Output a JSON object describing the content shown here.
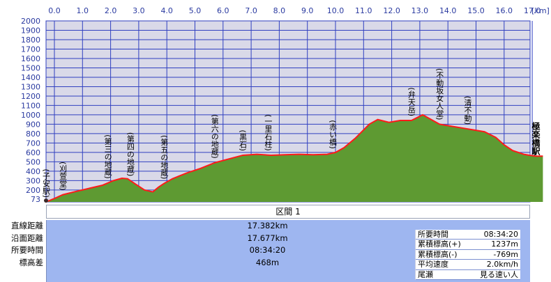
{
  "chart_data": {
    "type": "area",
    "x_unit_label": "[km]",
    "x_ticks": [
      0.0,
      1.0,
      2.0,
      3.0,
      4.0,
      5.0,
      6.0,
      7.0,
      8.0,
      9.0,
      10.0,
      11.0,
      12.0,
      13.0,
      14.0,
      15.0,
      16.0,
      17.0
    ],
    "x_tick_labels": [
      "0.0",
      "1.0",
      "2.0",
      "3.0",
      "4.0",
      "5.0",
      "6.0",
      "7.0",
      "8.0",
      "9.0",
      "10.0",
      "11.0",
      "12.0",
      "13.0",
      "14.0",
      "15.0",
      "16.0",
      "17.0"
    ],
    "y_ticks": [
      200,
      300,
      400,
      500,
      600,
      700,
      800,
      900,
      1000,
      1100,
      1200,
      1300,
      1400,
      1500,
      1600,
      1700,
      1800,
      1900,
      2000
    ],
    "y_min_label": "73",
    "xlim": [
      0,
      17.677
    ],
    "ylim": [
      73,
      2000
    ],
    "grid": true,
    "x": [
      0.0,
      0.3,
      0.6,
      1.0,
      1.5,
      2.0,
      2.4,
      2.7,
      2.9,
      3.2,
      3.5,
      3.8,
      4.0,
      4.2,
      4.5,
      5.0,
      5.5,
      6.0,
      6.5,
      7.0,
      7.5,
      8.0,
      8.5,
      9.0,
      9.5,
      10.0,
      10.3,
      10.6,
      11.0,
      11.5,
      11.8,
      12.2,
      12.6,
      13.0,
      13.4,
      13.7,
      14.0,
      14.4,
      14.8,
      15.2,
      15.6,
      16.0,
      16.3,
      16.6,
      17.0,
      17.4,
      17.677
    ],
    "y": [
      73,
      110,
      150,
      180,
      215,
      250,
      300,
      325,
      320,
      260,
      200,
      180,
      230,
      270,
      320,
      380,
      430,
      490,
      530,
      570,
      580,
      570,
      575,
      580,
      575,
      580,
      600,
      650,
      750,
      900,
      950,
      920,
      940,
      940,
      1000,
      950,
      900,
      880,
      860,
      840,
      820,
      760,
      680,
      620,
      580,
      560,
      560
    ],
    "waypoints": [
      {
        "label": "(子安駅)",
        "x": 0.0
      },
      {
        "label": "(刈萱堂)",
        "x": 0.6
      },
      {
        "label": "(第三の地蔵)",
        "x": 2.2
      },
      {
        "label": "(第四の地蔵)",
        "x": 3.0
      },
      {
        "label": "(第五の地蔵)",
        "x": 4.2
      },
      {
        "label": "(第六の地蔵)",
        "x": 6.0
      },
      {
        "label": "(黒石)",
        "x": 7.0
      },
      {
        "label": "(一里石柱)",
        "x": 7.9
      },
      {
        "label": "(赤い橋)",
        "x": 10.2
      },
      {
        "label": "(弁天岳)",
        "x": 13.0
      },
      {
        "label": "(不動坂女人堂)",
        "x": 14.0
      },
      {
        "label": "(清不動)",
        "x": 15.0
      }
    ],
    "end_label": "極楽橋駅",
    "colors": {
      "fill": "#5e9a32",
      "line": "#ff1a1a",
      "plot_bg": "#d9d9e8",
      "grid": "#3040c0"
    }
  },
  "section": {
    "title": "区間 1"
  },
  "stats": {
    "labels": [
      "直線距離",
      "沿面距離",
      "所要時間",
      "標高差"
    ],
    "values": [
      "17.382km",
      "17.677km",
      "08:34:20",
      "468m"
    ]
  },
  "summary": [
    {
      "label": "所要時間",
      "value": "08:34:20"
    },
    {
      "label": "累積標高(+)",
      "value": "1237m"
    },
    {
      "label": "累積標高(-)",
      "value": "-769m"
    },
    {
      "label": "平均速度",
      "value": "2.0km/h"
    },
    {
      "label": "尾瀬",
      "value": "見る速い人"
    }
  ]
}
